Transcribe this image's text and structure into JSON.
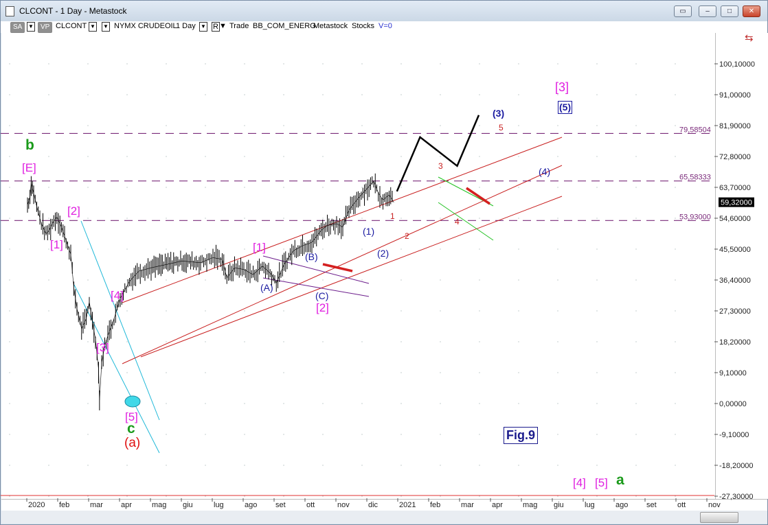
{
  "window": {
    "title": "CLCONT - 1 Day - Metastock"
  },
  "toolbar": {
    "sa": "SA",
    "vp": "VP",
    "symbol": "CLCONT",
    "instrument": "NYMX CRUDEOIL",
    "period": "1 Day",
    "r": "R",
    "items": [
      "Trade",
      "BB_COM_ENERG",
      "Metastock",
      "Stocks"
    ],
    "v0": "V=0"
  },
  "chart_data": {
    "type": "line",
    "title": "",
    "xlabel": "",
    "ylabel": "",
    "x_tick_labels": [
      "2020",
      "feb",
      "mar",
      "apr",
      "mag",
      "giu",
      "lug",
      "ago",
      "set",
      "ott",
      "nov",
      "dic",
      "2021",
      "feb",
      "mar",
      "apr",
      "mag",
      "giu",
      "lug",
      "ago",
      "set",
      "ott",
      "nov"
    ],
    "y_tick_labels": [
      "100,10000",
      "91,00000",
      "81,90000",
      "72,80000",
      "63,70000",
      "54,60000",
      "45,50000",
      "36,40000",
      "27,30000",
      "18,20000",
      "9,10000",
      "0,00000",
      "-9,10000",
      "-18,20000",
      "-27,30000"
    ],
    "y_ticks": [
      100.1,
      91.0,
      81.9,
      72.8,
      63.7,
      54.6,
      45.5,
      36.4,
      27.3,
      18.2,
      9.1,
      0.0,
      -9.1,
      -18.2,
      -27.3
    ],
    "ylim": [
      -27.3,
      109.2
    ],
    "last_price": "59,32000",
    "last_price_value": 59.32,
    "horizontal_levels": [
      {
        "label": "79,58504",
        "value": 79.585
      },
      {
        "label": "65,58333",
        "value": 65.583
      },
      {
        "label": "53,93000",
        "value": 53.93
      }
    ],
    "price_series": [
      {
        "month": 0.0,
        "value": 58.5
      },
      {
        "month": 0.08,
        "value": 61.0
      },
      {
        "month": 0.12,
        "value": 65.0
      },
      {
        "month": 0.2,
        "value": 62.0
      },
      {
        "month": 0.3,
        "value": 58.0
      },
      {
        "month": 0.45,
        "value": 53.0
      },
      {
        "month": 0.6,
        "value": 50.0
      },
      {
        "month": 0.7,
        "value": 51.0
      },
      {
        "month": 0.8,
        "value": 53.0
      },
      {
        "month": 0.95,
        "value": 55.0
      },
      {
        "month": 1.1,
        "value": 52.0
      },
      {
        "month": 1.25,
        "value": 48.0
      },
      {
        "month": 1.4,
        "value": 44.0
      },
      {
        "month": 1.5,
        "value": 34.0
      },
      {
        "month": 1.6,
        "value": 28.0
      },
      {
        "month": 1.75,
        "value": 22.0
      },
      {
        "month": 1.9,
        "value": 25.0
      },
      {
        "month": 2.0,
        "value": 30.0
      },
      {
        "month": 2.1,
        "value": 24.0
      },
      {
        "month": 2.2,
        "value": 19.0
      },
      {
        "month": 2.3,
        "value": 10.0
      },
      {
        "month": 2.33,
        "value": 1.0
      },
      {
        "month": 2.4,
        "value": 12.0
      },
      {
        "month": 2.5,
        "value": 17.0
      },
      {
        "month": 2.6,
        "value": 20.0
      },
      {
        "month": 2.8,
        "value": 25.0
      },
      {
        "month": 3.0,
        "value": 31.0
      },
      {
        "month": 3.3,
        "value": 36.0
      },
      {
        "month": 3.6,
        "value": 39.0
      },
      {
        "month": 4.0,
        "value": 40.0
      },
      {
        "month": 4.5,
        "value": 41.0
      },
      {
        "month": 5.0,
        "value": 42.0
      },
      {
        "month": 5.6,
        "value": 41.5
      },
      {
        "month": 6.0,
        "value": 43.0
      },
      {
        "month": 6.3,
        "value": 42.5
      },
      {
        "month": 6.45,
        "value": 37.0
      },
      {
        "month": 6.7,
        "value": 40.0
      },
      {
        "month": 7.0,
        "value": 39.5
      },
      {
        "month": 7.3,
        "value": 38.0
      },
      {
        "month": 7.6,
        "value": 40.5
      },
      {
        "month": 7.9,
        "value": 38.0
      },
      {
        "month": 8.05,
        "value": 35.5
      },
      {
        "month": 8.3,
        "value": 41.0
      },
      {
        "month": 8.6,
        "value": 45.0
      },
      {
        "month": 8.9,
        "value": 46.5
      },
      {
        "month": 9.2,
        "value": 47.5
      },
      {
        "month": 9.5,
        "value": 51.0
      },
      {
        "month": 9.7,
        "value": 52.5
      },
      {
        "month": 10.0,
        "value": 53.0
      },
      {
        "month": 10.2,
        "value": 52.0
      },
      {
        "month": 10.4,
        "value": 57.0
      },
      {
        "month": 10.7,
        "value": 60.5
      },
      {
        "month": 11.0,
        "value": 63.5
      },
      {
        "month": 11.2,
        "value": 65.5
      },
      {
        "month": 11.35,
        "value": 62.0
      },
      {
        "month": 11.5,
        "value": 60.0
      },
      {
        "month": 11.7,
        "value": 61.5
      },
      {
        "month": 11.85,
        "value": 59.3
      }
    ],
    "forecast_path": [
      {
        "month": 11.95,
        "value": 62.5
      },
      {
        "month": 12.7,
        "value": 78.5
      },
      {
        "month": 13.9,
        "value": 70.0
      },
      {
        "month": 14.6,
        "value": 85.0
      }
    ]
  },
  "wave_labels": {
    "b": "b",
    "E": "[E]",
    "w2a": "[2]",
    "w1a": "[1]",
    "w4a": "[4]",
    "w3a": "[3]",
    "w5": "[5]",
    "c": "c",
    "a_paren": "(a)",
    "w1b": "[1]",
    "A": "(A)",
    "B": "(B)",
    "C": "(C)",
    "w2b": "[2]",
    "p1": "(1)",
    "p2": "(2)",
    "n1": "1",
    "n2": "2",
    "n3": "3",
    "n4": "4",
    "n5": "5",
    "p3": "(3)",
    "p4": "(4)",
    "p5": "(5)",
    "w3top": "[3]",
    "w4bottom": "[4]",
    "w5bottom": "[5]",
    "a_green": "a",
    "fig": "Fig.9"
  },
  "colors": {
    "price": "#000000",
    "level": "#7a2a7a",
    "channel": "#c81e1e",
    "wedge": "#1fb8d8",
    "purple": "#6a1a8a",
    "green_channel": "#22c222",
    "forecast": "#000000",
    "red_marker": "#d42020",
    "ellipse": "#40d8e8"
  }
}
